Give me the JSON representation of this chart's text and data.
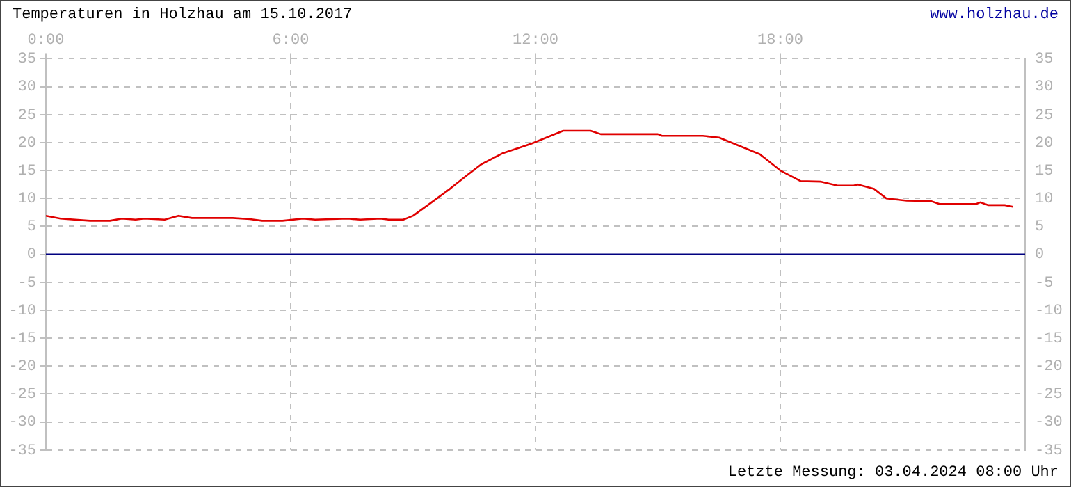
{
  "chart_data": {
    "type": "line",
    "title": "Temperaturen in Holzhau am 15.10.2017",
    "annotations": [
      "www.holzhau.de",
      "Letzte Messung: 03.04.2024 08:00 Uhr"
    ],
    "x": [
      0,
      0.36,
      1.08,
      1.57,
      1.86,
      2.2,
      2.41,
      2.91,
      3.25,
      3.58,
      4.58,
      5.0,
      5.3,
      5.8,
      6.3,
      6.6,
      7.4,
      7.7,
      8.2,
      8.4,
      8.76,
      9.0,
      9.36,
      9.9,
      10.33,
      10.67,
      11.2,
      11.9,
      12.34,
      12.68,
      13.35,
      13.6,
      15.0,
      15.1,
      16.1,
      16.5,
      17.0,
      17.5,
      18.0,
      18.5,
      19.0,
      19.4,
      19.8,
      19.9,
      20.3,
      20.6,
      21.1,
      21.7,
      21.9,
      22.8,
      22.9,
      23.1,
      23.5,
      23.7
    ],
    "series": [
      {
        "color": "#e00000",
        "values": [
          6.9,
          6.4,
          6.0,
          6.0,
          6.4,
          6.2,
          6.4,
          6.2,
          6.9,
          6.5,
          6.5,
          6.3,
          6.0,
          6.0,
          6.4,
          6.2,
          6.4,
          6.2,
          6.4,
          6.2,
          6.2,
          6.9,
          8.8,
          11.7,
          14.2,
          16.1,
          18.1,
          19.8,
          21.1,
          22.1,
          22.1,
          21.5,
          21.5,
          21.2,
          21.2,
          20.9,
          19.4,
          17.9,
          15.0,
          13.1,
          13.0,
          12.3,
          12.3,
          12.5,
          11.7,
          10.0,
          9.6,
          9.5,
          9.0,
          9.0,
          9.3,
          8.8,
          8.8,
          8.5
        ]
      }
    ],
    "xlim": [
      0,
      24
    ],
    "xticks": [
      {
        "value": 0,
        "label": "0:00"
      },
      {
        "value": 6,
        "label": "6:00"
      },
      {
        "value": 12,
        "label": "12:00"
      },
      {
        "value": 18,
        "label": "18:00"
      }
    ],
    "ylim": [
      -35,
      35
    ],
    "yticks": [
      -35,
      -30,
      -25,
      -20,
      -15,
      -10,
      -5,
      0,
      5,
      10,
      15,
      20,
      25,
      30,
      35
    ],
    "y2lim": [
      -35,
      35
    ],
    "y2ticks": [
      -35,
      -30,
      -25,
      -20,
      -15,
      -10,
      -5,
      0,
      5,
      10,
      15,
      20,
      25,
      30,
      35
    ],
    "ref_lines": [
      {
        "axis": "y",
        "value": 0,
        "color": "#000080"
      }
    ],
    "grid": true,
    "legend": false,
    "marker": "none",
    "line_style": "solid"
  }
}
